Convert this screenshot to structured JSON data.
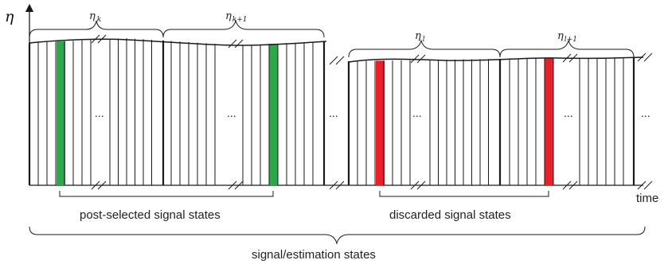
{
  "axis": {
    "y_label": "η",
    "x_label": "time"
  },
  "blocks": [
    {
      "symbol": "η",
      "subscript": "k"
    },
    {
      "symbol": "η",
      "subscript": "k+1"
    },
    {
      "symbol": "η",
      "subscript": "l"
    },
    {
      "symbol": "η",
      "subscript": "l+1"
    }
  ],
  "ellipsis": "...",
  "labels": {
    "post_selected": "post-selected signal states",
    "discarded": "discarded signal states",
    "all_states": "signal/estimation states"
  },
  "colors": {
    "post_selected_bar": "#2ca84a",
    "discarded_bar": "#e8202a",
    "line": "#1a1a1a"
  }
}
